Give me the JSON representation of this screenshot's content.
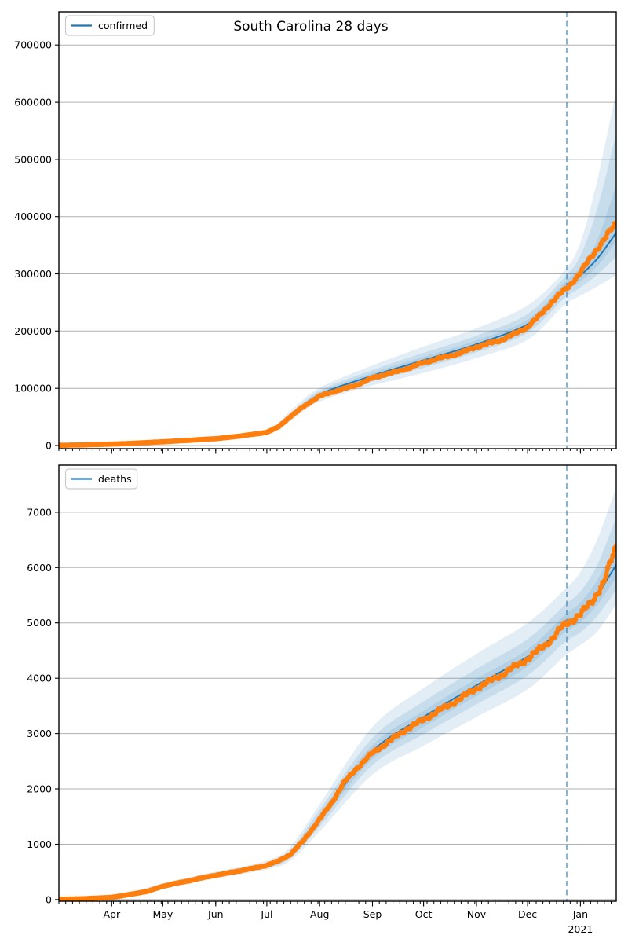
{
  "figure": {
    "title": "South Carolina 28 days",
    "background": "#ffffff",
    "colors": {
      "actual": "#ff7f0e",
      "median": "#1f77b4",
      "band": "#1f77b4",
      "band_opacity": 0.13,
      "grid": "#b0b0b0",
      "dashed": "rgba(31,119,180,0.55)",
      "spine": "#000000",
      "tick": "#000000",
      "legend_border": "#cccccc",
      "legend_bg": "#ffffff"
    }
  },
  "x_axis": {
    "start_day": 0,
    "end_day": 327,
    "forecast_line_day": 298,
    "minor_tick_step": 4,
    "month_ticks": [
      {
        "day": 31,
        "label": "Apr"
      },
      {
        "day": 61,
        "label": "May"
      },
      {
        "day": 92,
        "label": "Jun"
      },
      {
        "day": 122,
        "label": "Jul"
      },
      {
        "day": 153,
        "label": "Aug"
      },
      {
        "day": 184,
        "label": "Sep"
      },
      {
        "day": 214,
        "label": "Oct"
      },
      {
        "day": 245,
        "label": "Nov"
      },
      {
        "day": 275,
        "label": "Dec"
      },
      {
        "day": 306,
        "label": "Jan",
        "year": "2021"
      }
    ]
  },
  "chart_data": [
    {
      "type": "line",
      "name": "confirmed",
      "legend_label": "confirmed",
      "ylim": [
        -5500,
        758000
      ],
      "yticks": [
        {
          "v": 0,
          "label": "0"
        },
        {
          "v": 100000,
          "label": "100000"
        },
        {
          "v": 200000,
          "label": "200000"
        },
        {
          "v": 300000,
          "label": "300000"
        },
        {
          "v": 400000,
          "label": "400000"
        },
        {
          "v": 500000,
          "label": "500000"
        },
        {
          "v": 600000,
          "label": "600000"
        },
        {
          "v": 700000,
          "label": "700000"
        }
      ],
      "actual": [
        [
          0,
          300
        ],
        [
          7,
          700
        ],
        [
          14,
          1100
        ],
        [
          21,
          1600
        ],
        [
          31,
          2500
        ],
        [
          38,
          3200
        ],
        [
          45,
          4100
        ],
        [
          52,
          5200
        ],
        [
          61,
          6500
        ],
        [
          68,
          7700
        ],
        [
          75,
          8800
        ],
        [
          82,
          10200
        ],
        [
          92,
          12000
        ],
        [
          99,
          14000
        ],
        [
          106,
          16500
        ],
        [
          113,
          19200
        ],
        [
          122,
          23000
        ],
        [
          129,
          33000
        ],
        [
          136,
          51000
        ],
        [
          143,
          67000
        ],
        [
          153,
          86500
        ],
        [
          160,
          93000
        ],
        [
          167,
          99000
        ],
        [
          174,
          105000
        ],
        [
          184,
          118000
        ],
        [
          191,
          124000
        ],
        [
          198,
          129000
        ],
        [
          205,
          135000
        ],
        [
          214,
          145000
        ],
        [
          221,
          150500
        ],
        [
          228,
          156000
        ],
        [
          235,
          161000
        ],
        [
          245,
          172500
        ],
        [
          252,
          178000
        ],
        [
          259,
          184000
        ],
        [
          266,
          193000
        ],
        [
          275,
          207000
        ],
        [
          282,
          227000
        ],
        [
          289,
          250000
        ],
        [
          296,
          270000
        ],
        [
          299,
          278000
        ],
        [
          306,
          302000
        ],
        [
          313,
          333000
        ],
        [
          320,
          360000
        ],
        [
          327,
          390000
        ]
      ],
      "median": [
        [
          0,
          300
        ],
        [
          31,
          2500
        ],
        [
          61,
          6500
        ],
        [
          92,
          12000
        ],
        [
          122,
          23500
        ],
        [
          136,
          51500
        ],
        [
          153,
          89000
        ],
        [
          184,
          122000
        ],
        [
          214,
          149000
        ],
        [
          245,
          177000
        ],
        [
          275,
          212000
        ],
        [
          289,
          252000
        ],
        [
          298,
          275000
        ],
        [
          306,
          297000
        ],
        [
          316,
          327000
        ],
        [
          327,
          372000
        ]
      ],
      "bands": {
        "days": [
          0,
          31,
          61,
          92,
          122,
          136,
          153,
          184,
          214,
          245,
          275,
          296,
          306,
          316,
          327
        ],
        "outer_lo": [
          150,
          1900,
          5300,
          10100,
          19500,
          43000,
          77000,
          105000,
          127000,
          153000,
          185000,
          244000,
          262000,
          278000,
          298000
        ],
        "outer_hi": [
          550,
          3300,
          8100,
          14600,
          28500,
          61000,
          101000,
          140000,
          173000,
          205000,
          245000,
          303000,
          355000,
          465000,
          620000
        ],
        "mid_lo": [
          200,
          2150,
          5800,
          10900,
          21000,
          46500,
          82000,
          112000,
          136000,
          163000,
          197000,
          256000,
          276000,
          299000,
          330000
        ],
        "mid_hi": [
          430,
          2950,
          7300,
          13300,
          26300,
          56000,
          96000,
          132000,
          162000,
          192000,
          230000,
          292000,
          332000,
          415000,
          545000
        ],
        "inner_lo": [
          260,
          2330,
          6200,
          11500,
          22300,
          49300,
          86000,
          117000,
          142000,
          170000,
          205000,
          266000,
          287000,
          314000,
          356000
        ],
        "inner_hi": [
          360,
          2700,
          6850,
          12550,
          24700,
          54000,
          92500,
          127000,
          155000,
          184000,
          220000,
          283000,
          312000,
          360000,
          455000
        ]
      }
    },
    {
      "type": "line",
      "name": "deaths",
      "legend_label": "deaths",
      "ylim": [
        -30,
        7850
      ],
      "yticks": [
        {
          "v": 0,
          "label": "0"
        },
        {
          "v": 1000,
          "label": "1000"
        },
        {
          "v": 2000,
          "label": "2000"
        },
        {
          "v": 3000,
          "label": "3000"
        },
        {
          "v": 4000,
          "label": "4000"
        },
        {
          "v": 5000,
          "label": "5000"
        },
        {
          "v": 6000,
          "label": "6000"
        },
        {
          "v": 7000,
          "label": "7000"
        }
      ],
      "actual": [
        [
          0,
          5
        ],
        [
          14,
          15
        ],
        [
          31,
          40
        ],
        [
          45,
          110
        ],
        [
          52,
          150
        ],
        [
          61,
          240
        ],
        [
          68,
          290
        ],
        [
          75,
          330
        ],
        [
          82,
          380
        ],
        [
          92,
          440
        ],
        [
          99,
          480
        ],
        [
          106,
          520
        ],
        [
          113,
          560
        ],
        [
          122,
          620
        ],
        [
          129,
          700
        ],
        [
          136,
          820
        ],
        [
          143,
          1050
        ],
        [
          153,
          1450
        ],
        [
          160,
          1750
        ],
        [
          167,
          2100
        ],
        [
          174,
          2350
        ],
        [
          184,
          2650
        ],
        [
          191,
          2800
        ],
        [
          198,
          2950
        ],
        [
          205,
          3100
        ],
        [
          214,
          3250
        ],
        [
          221,
          3380
        ],
        [
          228,
          3500
        ],
        [
          235,
          3620
        ],
        [
          245,
          3820
        ],
        [
          252,
          3930
        ],
        [
          259,
          4050
        ],
        [
          266,
          4180
        ],
        [
          275,
          4350
        ],
        [
          282,
          4520
        ],
        [
          289,
          4700
        ],
        [
          296,
          4950
        ],
        [
          306,
          5150
        ],
        [
          313,
          5400
        ],
        [
          320,
          5750
        ],
        [
          327,
          6400
        ]
      ],
      "median": [
        [
          0,
          5
        ],
        [
          31,
          40
        ],
        [
          61,
          240
        ],
        [
          92,
          440
        ],
        [
          122,
          620
        ],
        [
          136,
          830
        ],
        [
          153,
          1470
        ],
        [
          184,
          2680
        ],
        [
          214,
          3300
        ],
        [
          245,
          3870
        ],
        [
          275,
          4390
        ],
        [
          289,
          4730
        ],
        [
          298,
          4990
        ],
        [
          306,
          5180
        ],
        [
          316,
          5520
        ],
        [
          327,
          6050
        ]
      ],
      "bands": {
        "days": [
          0,
          31,
          61,
          92,
          122,
          136,
          153,
          184,
          214,
          245,
          275,
          296,
          306,
          316,
          327
        ],
        "outer_lo": [
          1,
          26,
          195,
          385,
          545,
          710,
          1230,
          2260,
          2780,
          3300,
          3800,
          4380,
          4600,
          4850,
          5340
        ],
        "outer_hi": [
          12,
          58,
          295,
          505,
          705,
          965,
          1720,
          3120,
          3820,
          4440,
          5000,
          5580,
          5920,
          6520,
          7440
        ],
        "mid_lo": [
          2,
          31,
          212,
          407,
          577,
          755,
          1320,
          2430,
          2990,
          3530,
          4050,
          4630,
          4830,
          5130,
          5600
        ],
        "mid_hi": [
          9,
          51,
          272,
          478,
          668,
          905,
          1620,
          2920,
          3580,
          4170,
          4710,
          5300,
          5570,
          6060,
          6900
        ],
        "inner_lo": [
          3,
          35,
          226,
          422,
          597,
          790,
          1390,
          2540,
          3120,
          3680,
          4210,
          4810,
          5010,
          5330,
          5820
        ],
        "inner_hi": [
          7,
          46,
          257,
          460,
          646,
          862,
          1540,
          2790,
          3410,
          3990,
          4520,
          5120,
          5370,
          5780,
          6430
        ]
      }
    }
  ]
}
